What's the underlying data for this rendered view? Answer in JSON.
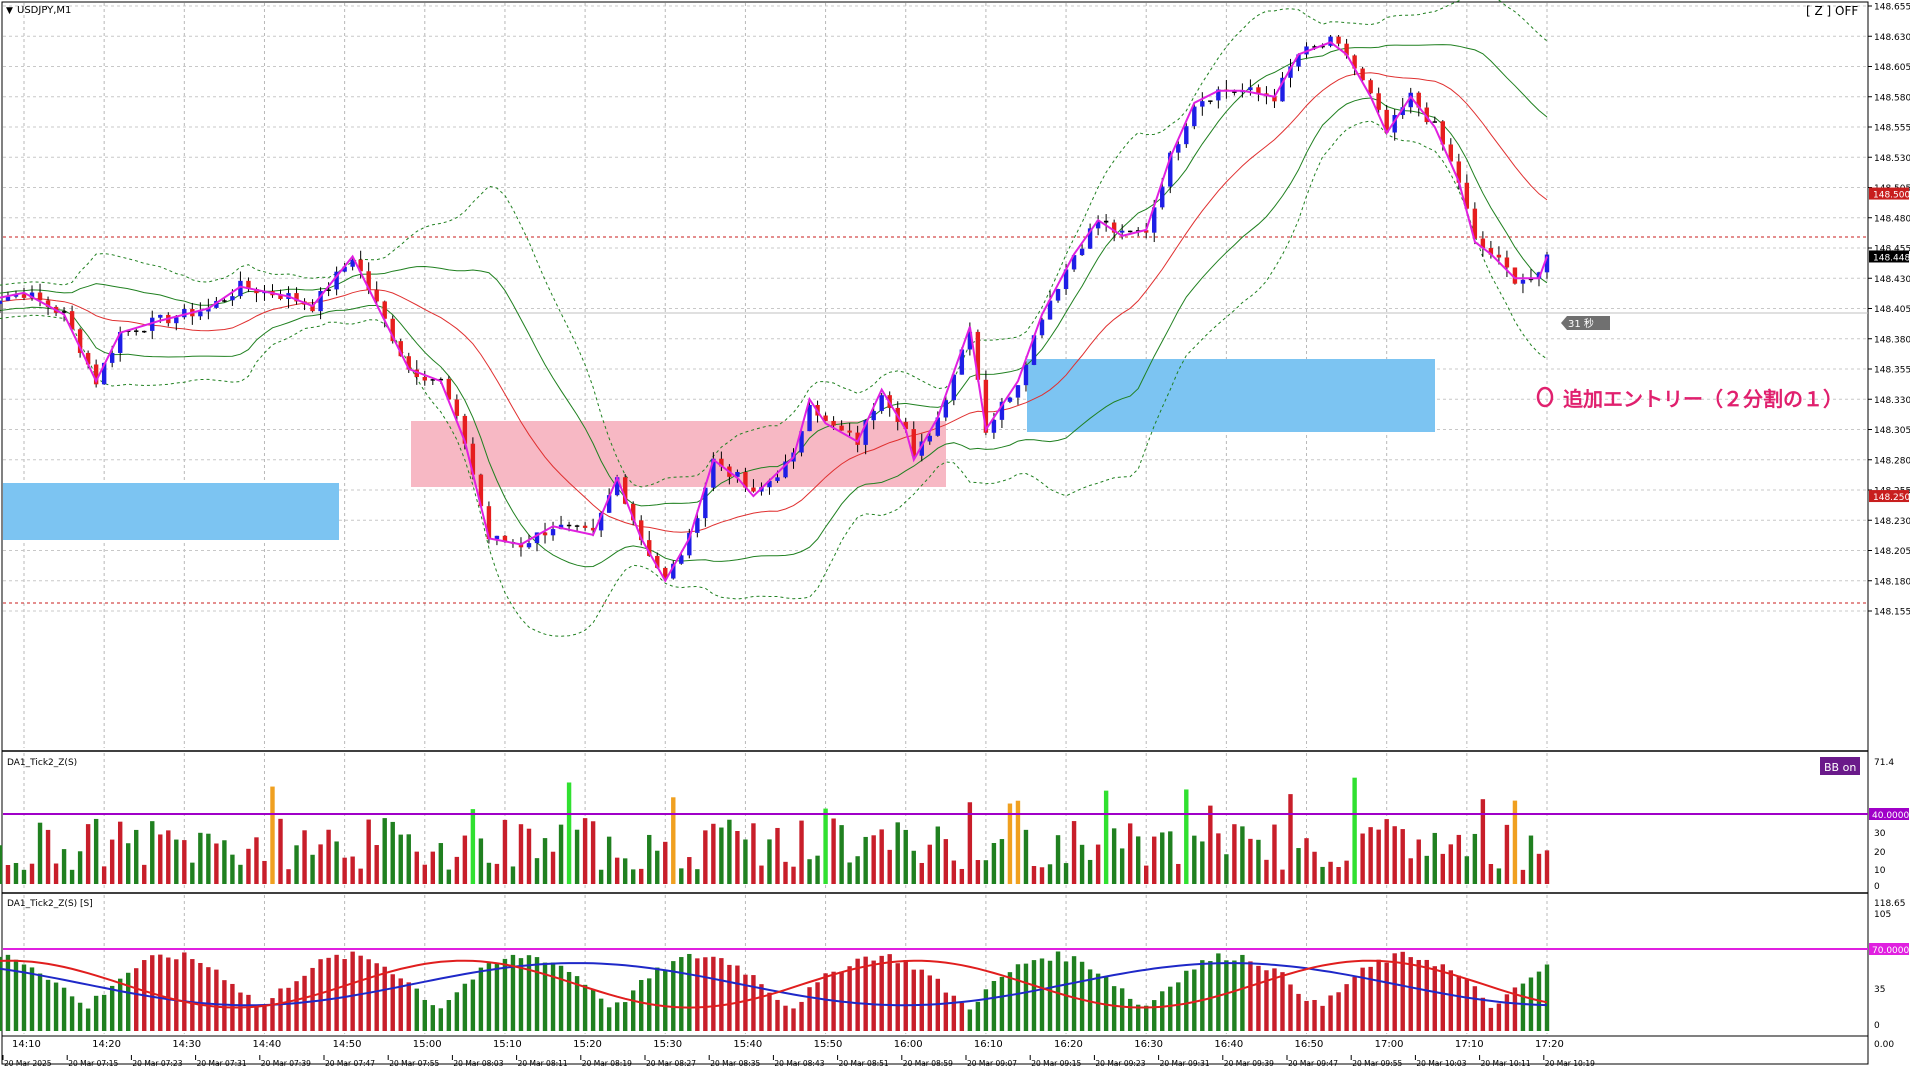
{
  "window": {
    "symbol_title": "USDJPY,M1",
    "zoom_status": "[ Z ] OFF",
    "timer": "31 秒",
    "bb_button": "BB on"
  },
  "main_chart": {
    "price_ticks": [
      "148.655",
      "148.630",
      "148.605",
      "148.580",
      "148.555",
      "148.530",
      "148.505",
      "148.480",
      "148.455",
      "148.430",
      "148.405",
      "148.380",
      "148.355",
      "148.330",
      "148.305",
      "148.280",
      "148.255",
      "148.230",
      "148.205",
      "148.180",
      "148.155"
    ],
    "current_price": "148.448",
    "level_high": "148.500",
    "level_low": "148.250",
    "annotation": "追加エントリー（２分割の１）",
    "annotation_marker": "O"
  },
  "subwindow1": {
    "title": "DA1_Tick2_Z(S)",
    "ticks": [
      "71.4",
      "40.0000",
      "30",
      "20",
      "10",
      "0"
    ],
    "threshold": "40.0000"
  },
  "subwindow2": {
    "title": "DA1_Tick2_Z(S) [S]",
    "ticks": [
      "118.65",
      "105",
      "70.0000",
      "35",
      "0",
      "0.00"
    ],
    "threshold": "70.0000"
  },
  "time_axis_short": [
    "14:10",
    "14:20",
    "14:30",
    "14:40",
    "14:50",
    "15:00",
    "15:10",
    "15:20",
    "15:30",
    "15:40",
    "15:50",
    "16:00",
    "16:10",
    "16:20",
    "16:30",
    "16:40",
    "16:50",
    "17:00",
    "17:10",
    "17:20"
  ],
  "time_axis_long": [
    "20 Mar 2025",
    "20 Mar 07:15",
    "20 Mar 07:23",
    "20 Mar 07:31",
    "20 Mar 07:39",
    "20 Mar 07:47",
    "20 Mar 07:55",
    "20 Mar 08:03",
    "20 Mar 08:11",
    "20 Mar 08:19",
    "20 Mar 08:27",
    "20 Mar 08:35",
    "20 Mar 08:43",
    "20 Mar 08:51",
    "20 Mar 08:59",
    "20 Mar 09:07",
    "20 Mar 09:15",
    "20 Mar 09:23",
    "20 Mar 09:31",
    "20 Mar 09:39",
    "20 Mar 09:47",
    "20 Mar 09:55",
    "20 Mar 10:03",
    "20 Mar 10:11",
    "20 Mar 10:19"
  ],
  "colors": {
    "bull": "#1e1ee6",
    "bear": "#e61e1e",
    "doji": "#000000",
    "zigzag": "#e020e0",
    "bb_mid": "#e03030",
    "bb_inner": "#208020",
    "blue_zone": "#7cc4f2",
    "pink_zone": "#f7b8c4",
    "level_line": "#c81e1e",
    "hist_green": "#208020",
    "hist_red": "#c81e2a",
    "hist_lime": "#30e030",
    "hist_orange": "#f0a020",
    "threshold1": "#a000c8",
    "threshold2": "#e020e0"
  },
  "chart_data": {
    "type": "candlestick",
    "keyframes_time_price": [
      [
        "14:04",
        148.41
      ],
      [
        "14:10",
        148.418
      ],
      [
        "14:15",
        148.4
      ],
      [
        "14:19",
        148.345
      ],
      [
        "14:22",
        148.385
      ],
      [
        "14:27",
        148.395
      ],
      [
        "14:33",
        148.405
      ],
      [
        "14:37",
        148.423
      ],
      [
        "14:43",
        148.415
      ],
      [
        "14:46",
        148.407
      ],
      [
        "14:51",
        148.448
      ],
      [
        "14:55",
        148.395
      ],
      [
        "14:58",
        148.355
      ],
      [
        "15:02",
        148.345
      ],
      [
        "15:05",
        148.295
      ],
      [
        "15:08",
        148.215
      ],
      [
        "15:12",
        148.21
      ],
      [
        "15:16",
        148.225
      ],
      [
        "15:21",
        148.218
      ],
      [
        "15:24",
        148.265
      ],
      [
        "15:27",
        148.215
      ],
      [
        "15:30",
        148.18
      ],
      [
        "15:33",
        148.215
      ],
      [
        "15:36",
        148.28
      ],
      [
        "15:39",
        148.265
      ],
      [
        "15:41",
        148.25
      ],
      [
        "15:46",
        148.282
      ],
      [
        "15:48",
        148.33
      ],
      [
        "15:50",
        148.31
      ],
      [
        "15:54",
        148.295
      ],
      [
        "15:57",
        148.338
      ],
      [
        "16:00",
        148.305
      ],
      [
        "16:01",
        148.28
      ],
      [
        "16:04",
        148.315
      ],
      [
        "16:08",
        148.39
      ],
      [
        "16:10",
        148.305
      ],
      [
        "16:14",
        148.345
      ],
      [
        "16:17",
        148.4
      ],
      [
        "16:21",
        148.45
      ],
      [
        "16:24",
        148.478
      ],
      [
        "16:27",
        148.465
      ],
      [
        "16:30",
        148.47
      ],
      [
        "16:33",
        148.53
      ],
      [
        "16:36",
        148.575
      ],
      [
        "16:39",
        148.585
      ],
      [
        "16:42",
        148.585
      ],
      [
        "16:46",
        148.58
      ],
      [
        "16:49",
        148.615
      ],
      [
        "16:53",
        148.625
      ],
      [
        "16:55",
        148.615
      ],
      [
        "16:58",
        148.58
      ],
      [
        "17:00",
        148.55
      ],
      [
        "17:03",
        148.58
      ],
      [
        "17:06",
        148.555
      ],
      [
        "17:09",
        148.51
      ],
      [
        "17:11",
        148.46
      ],
      [
        "17:13",
        148.45
      ],
      [
        "17:16",
        148.43
      ],
      [
        "17:19",
        148.43
      ],
      [
        "17:20",
        148.448
      ]
    ]
  }
}
